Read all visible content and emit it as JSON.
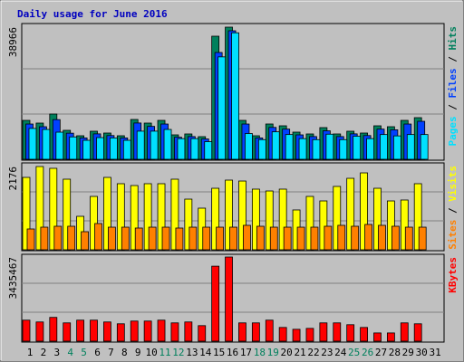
{
  "chart_data": [
    {
      "type": "bar",
      "title": "Daily usage for June 2016",
      "title_color": "#0000c0",
      "ylim": [
        0,
        38966
      ],
      "yticks": [
        38966
      ],
      "legend_separator": " / ",
      "series": [
        {
          "name": "Hits",
          "color": "#00805c",
          "values": [
            11477,
            10676,
            13345,
            8541,
            6939,
            8274,
            7740,
            6939,
            11743,
            10676,
            11477,
            7206,
            7473,
            6672,
            36297,
            38966,
            11477,
            6939,
            10409,
            9875,
            8007,
            7473,
            9341,
            7473,
            8274,
            7740,
            9875,
            9608,
            11477,
            12277,
            null
          ]
        },
        {
          "name": "Files",
          "color": "#0040ff",
          "values": [
            10400,
            9600,
            11700,
            7700,
            6300,
            7500,
            7000,
            6300,
            10700,
            9700,
            10400,
            6500,
            6700,
            6000,
            31494,
            37900,
            10400,
            6300,
            9400,
            8900,
            7200,
            6700,
            8400,
            6700,
            7500,
            7000,
            8900,
            8700,
            10400,
            11200,
            null
          ]
        },
        {
          "name": "Pages",
          "color": "#00e0ff",
          "values": [
            9100,
            8800,
            8000,
            6600,
            5600,
            6400,
            6300,
            5600,
            8300,
            8300,
            8800,
            6100,
            6100,
            5200,
            30200,
            37300,
            7600,
            5800,
            8100,
            7300,
            6100,
            5800,
            7400,
            5800,
            6800,
            6100,
            7300,
            6900,
            7300,
            7300,
            null
          ]
        }
      ]
    },
    {
      "type": "bar",
      "ylim": [
        0,
        2176
      ],
      "yticks": [
        2176
      ],
      "legend_separator": " / ",
      "series": [
        {
          "name": "Visits",
          "color": "#ffff00",
          "values": [
            1892,
            2176,
            2129,
            1845,
            875,
            1395,
            1892,
            1727,
            1679,
            1727,
            1727,
            1845,
            1324,
            1088,
            1608,
            1821,
            1797,
            1585,
            1537,
            1585,
            1041,
            1395,
            1277,
            1656,
            1868,
            2010,
            1608,
            1277,
            1301,
            1727,
            null
          ]
        },
        {
          "name": "Sites",
          "color": "#ff8000",
          "values": [
            544,
            591,
            615,
            615,
            473,
            686,
            591,
            591,
            568,
            591,
            591,
            568,
            591,
            591,
            591,
            591,
            639,
            615,
            591,
            591,
            591,
            591,
            615,
            639,
            615,
            662,
            639,
            615,
            591,
            591,
            null
          ]
        }
      ]
    },
    {
      "type": "bar",
      "ylim": [
        0,
        3435467
      ],
      "yticks": [
        3435467
      ],
      "categories": [
        "1",
        "2",
        "3",
        "4",
        "5",
        "6",
        "7",
        "8",
        "9",
        "10",
        "11",
        "12",
        "13",
        "14",
        "15",
        "16",
        "17",
        "18",
        "19",
        "20",
        "21",
        "22",
        "23",
        "24",
        "25",
        "26",
        "27",
        "28",
        "29",
        "30",
        "31"
      ],
      "category_color": "#000000",
      "highlight_color": "#00805c",
      "highlighted_categories": [
        "4",
        "5",
        "11",
        "12",
        "18",
        "19",
        "25",
        "26"
      ],
      "series": [
        {
          "name": "KBytes",
          "color": "#ff0000",
          "values": [
            858866,
            784182,
            970892,
            746840,
            858866,
            858866,
            784182,
            709498,
            821524,
            821524,
            858866,
            746840,
            784182,
            634814,
            3062044,
            3435467,
            746840,
            746840,
            858866,
            560130,
            485446,
            522788,
            746840,
            746840,
            672156,
            560130,
            336078,
            336078,
            746840,
            709498,
            null
          ]
        }
      ]
    }
  ]
}
